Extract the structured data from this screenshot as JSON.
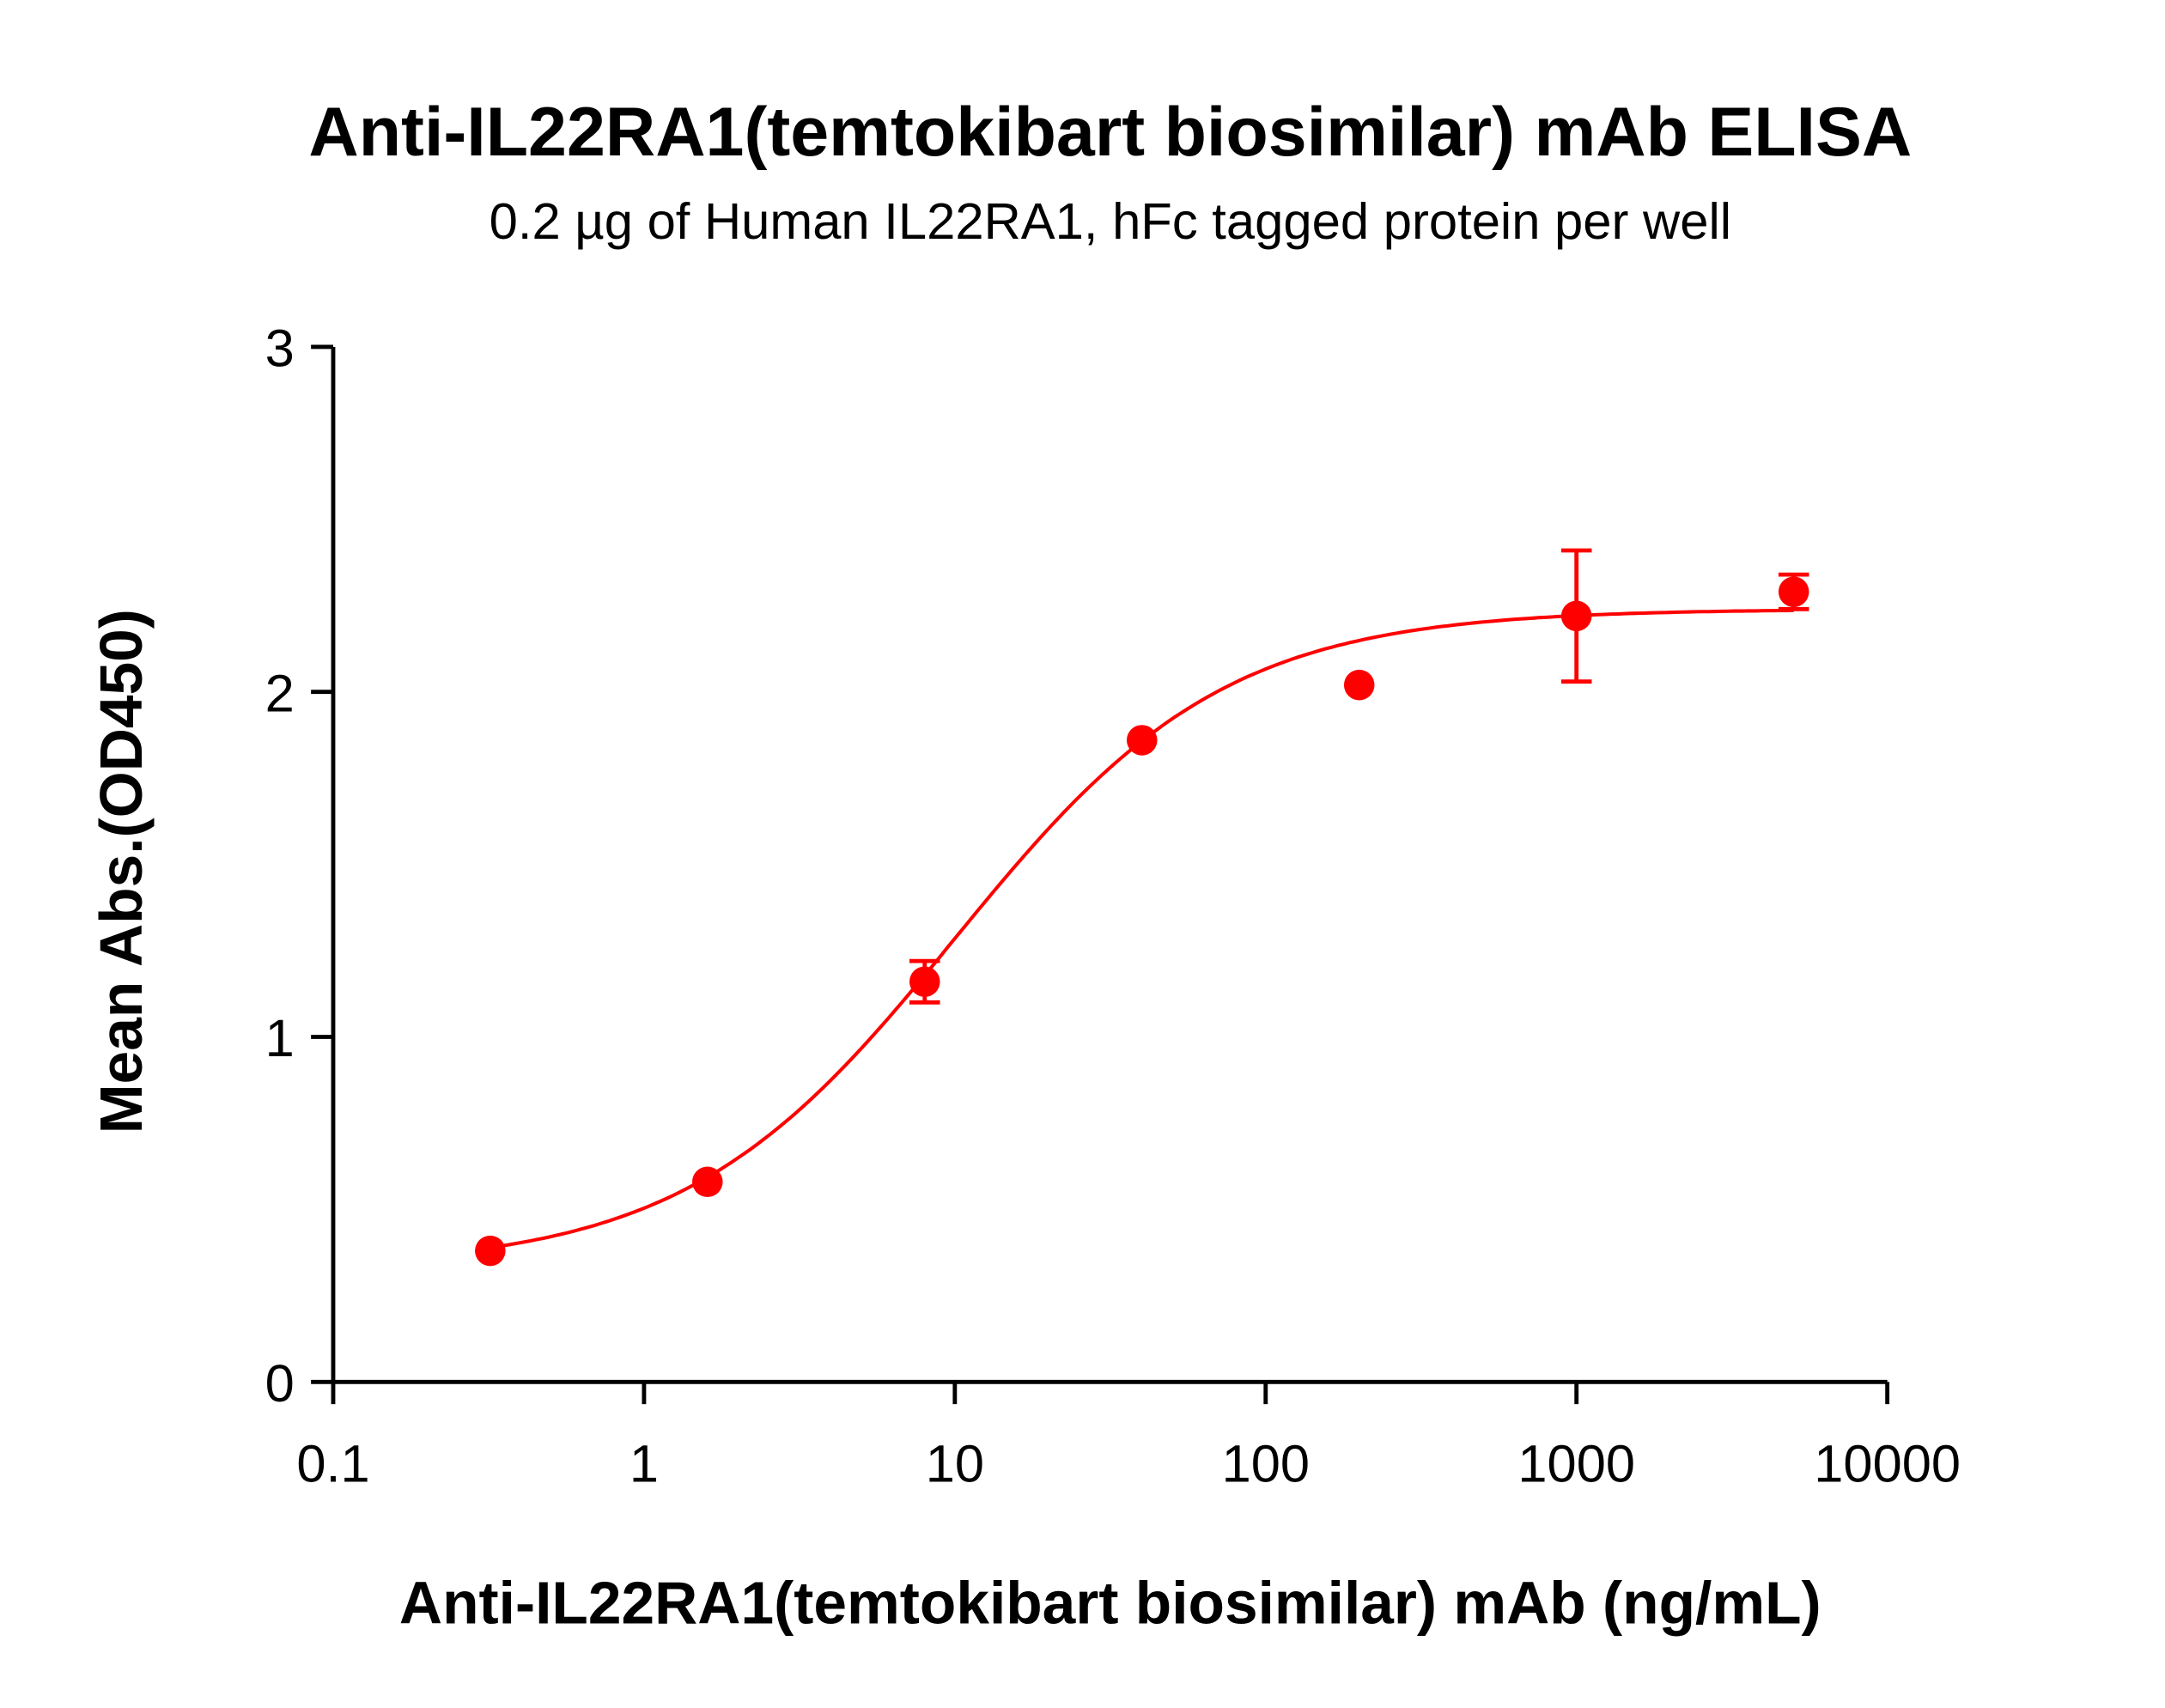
{
  "chart_data": {
    "type": "scatter",
    "title": "Anti-IL22RA1(temtokibart biosimilar) mAb ELISA",
    "subtitle": "0.2 µg of Human IL22RA1, hFc tagged protein per well",
    "xlabel": "Anti-IL22RA1(temtokibart biosimilar) mAb (ng/mL)",
    "ylabel": "Mean Abs.(OD450)",
    "x_scale": "log",
    "xlim": [
      0.1,
      10000
    ],
    "ylim": [
      0,
      3
    ],
    "x_ticks": [
      "0.1",
      "1",
      "10",
      "100",
      "1000",
      "10000"
    ],
    "y_ticks": [
      "0",
      "1",
      "2",
      "3"
    ],
    "grid": false,
    "color": "#ff0000",
    "series": [
      {
        "x": [
          0.32,
          1.6,
          8,
          40,
          200,
          1000,
          5000
        ],
        "y": [
          0.38,
          0.58,
          1.16,
          1.86,
          2.02,
          2.22,
          2.29
        ],
        "error": [
          0.01,
          0.01,
          0.06,
          0.01,
          0.01,
          0.19,
          0.05
        ]
      }
    ],
    "fit": {
      "model": "4PL",
      "bottom": 0.33,
      "top": 2.24,
      "ec50": 10,
      "hill": 1
    }
  }
}
